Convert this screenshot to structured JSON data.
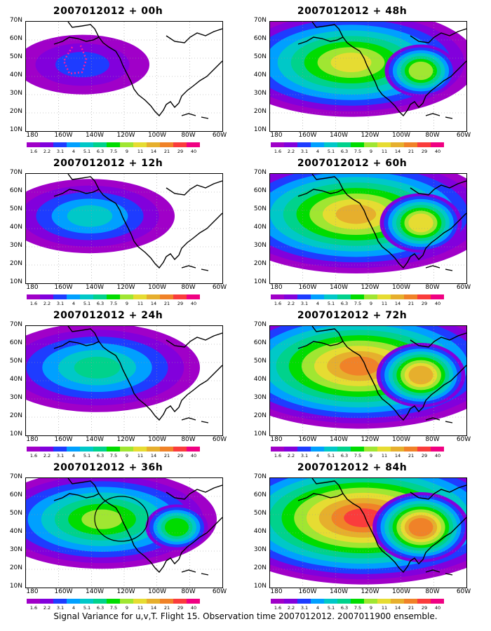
{
  "footer": "Signal Variance for u,v,T. Flight 15. Observation time 2007012012. 2007011900 ensemble.",
  "lat_labels": [
    "70N",
    "60N",
    "50N",
    "40N",
    "30N",
    "20N",
    "10N"
  ],
  "lon_labels": [
    "180",
    "160W",
    "140W",
    "120W",
    "100W",
    "80W",
    "60W"
  ],
  "colorbar": {
    "colors": [
      "#a000c8",
      "#8200dc",
      "#1e3cff",
      "#00a0ff",
      "#00c8c8",
      "#00d28c",
      "#00dc00",
      "#a0e632",
      "#e6dc32",
      "#e6af2d",
      "#f08228",
      "#fa3c3c",
      "#f00082"
    ],
    "labels": [
      "1.6",
      "2.2",
      "3.1",
      "4",
      "5.1",
      "6.3",
      "7.5",
      "9",
      "11",
      "14",
      "21",
      "29",
      "40"
    ]
  },
  "panels": [
    {
      "title": "2007012012 + 00h",
      "level": 0.15
    },
    {
      "title": "2007012012 + 48h",
      "level": 0.65
    },
    {
      "title": "2007012012 + 12h",
      "level": 0.3
    },
    {
      "title": "2007012012 + 60h",
      "level": 0.75
    },
    {
      "title": "2007012012 + 24h",
      "level": 0.45
    },
    {
      "title": "2007012012 + 72h",
      "level": 0.82
    },
    {
      "title": "2007012012 + 36h",
      "level": 0.55
    },
    {
      "title": "2007012012 + 84h",
      "level": 0.9
    }
  ]
}
